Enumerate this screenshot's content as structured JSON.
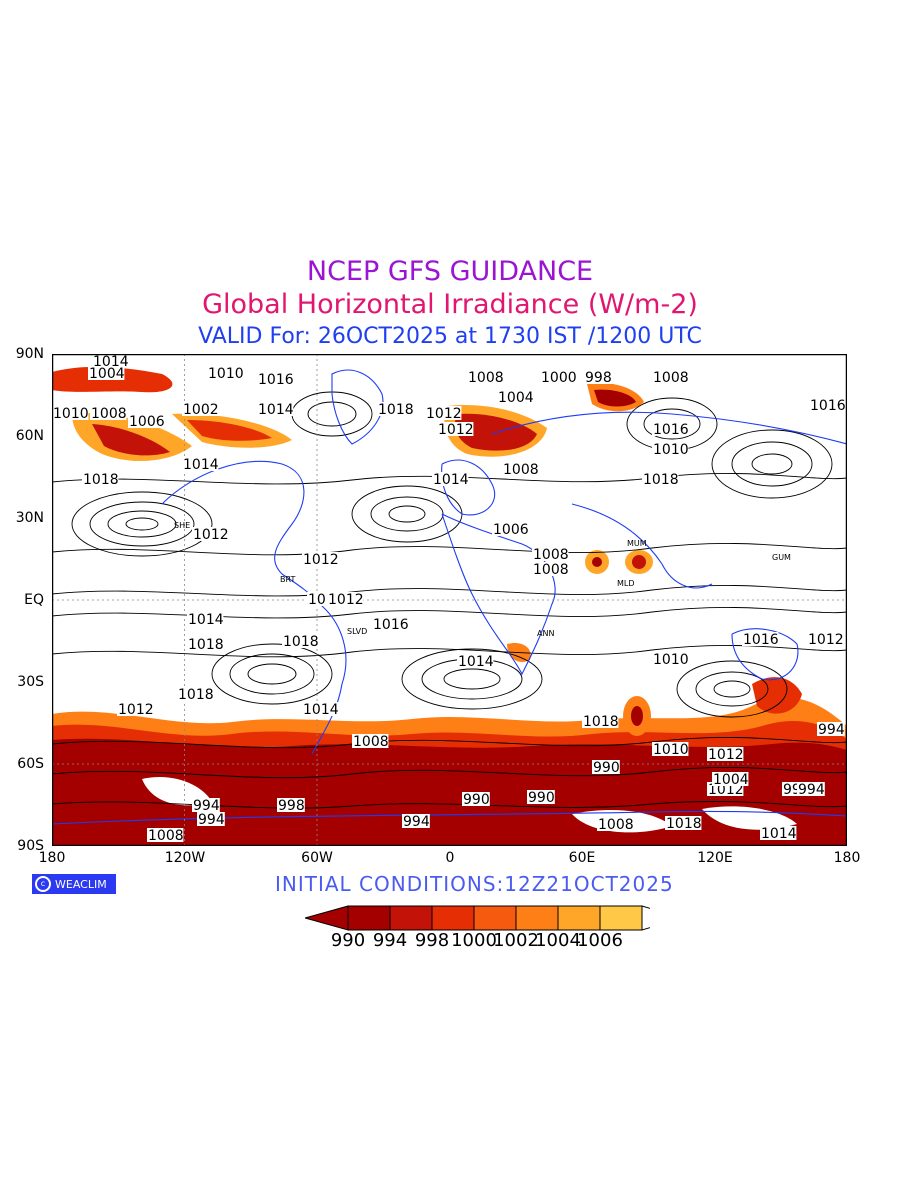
{
  "titles": {
    "line1": "NCEP GFS GUIDANCE",
    "line2": "Global Horizontal Irradiance (W/m-2)",
    "line3": "VALID For: 26OCT2025 at 1730 IST /1200 UTC"
  },
  "axes": {
    "y_labels": [
      "90N",
      "60N",
      "30N",
      "EQ",
      "30S",
      "60S",
      "90S"
    ],
    "x_labels": [
      "180",
      "120W",
      "60W",
      "0",
      "60E",
      "120E",
      "180"
    ]
  },
  "map": {
    "contour_labels": [
      "1014",
      "1004",
      "1010",
      "1016",
      "1008",
      "1000",
      "998",
      "1008",
      "1010",
      "1008",
      "1006",
      "1002",
      "1014",
      "1018",
      "1012",
      "1016",
      "1004",
      "1018",
      "1014",
      "1018",
      "1012",
      "1016",
      "1010",
      "1014",
      "1008",
      "1012",
      "1014",
      "1018",
      "1012",
      "1010",
      "1006",
      "1008",
      "1012",
      "1016",
      "1018",
      "1014",
      "1012",
      "1018",
      "1014",
      "1010",
      "1016",
      "1012",
      "1018",
      "1010",
      "1012",
      "1008",
      "1008",
      "994",
      "990",
      "990",
      "994",
      "994",
      "998",
      "990",
      "994",
      "1008",
      "1012",
      "1004",
      "990",
      "994",
      "1014",
      "1018",
      "1008"
    ],
    "station_codes": [
      "SHE",
      "SLVD",
      "BRT",
      "MLD",
      "GUM",
      "ANN",
      "MUM"
    ],
    "colors": {
      "land_outline": "#1e3cf5",
      "contour": "#000000",
      "fill_990": "#a50000",
      "fill_994": "#c31208",
      "fill_998": "#e62e05",
      "fill_1000": "#f55a0f",
      "fill_1002": "#ff7f17",
      "fill_1004": "#ffa528",
      "fill_1006": "#ffc846"
    }
  },
  "logo": {
    "text": "WEACLIM",
    "icon": "copyright-circle-icon"
  },
  "initial_conditions": "INITIAL  CONDITIONS:12Z21OCT2025",
  "colorbar": {
    "labels": [
      "990",
      "994",
      "998",
      "1000",
      "1002",
      "1004",
      "1006"
    ],
    "colors": [
      "#a50000",
      "#c31208",
      "#e62e05",
      "#f55a0f",
      "#ff7f17",
      "#ffa528",
      "#ffc846"
    ]
  }
}
